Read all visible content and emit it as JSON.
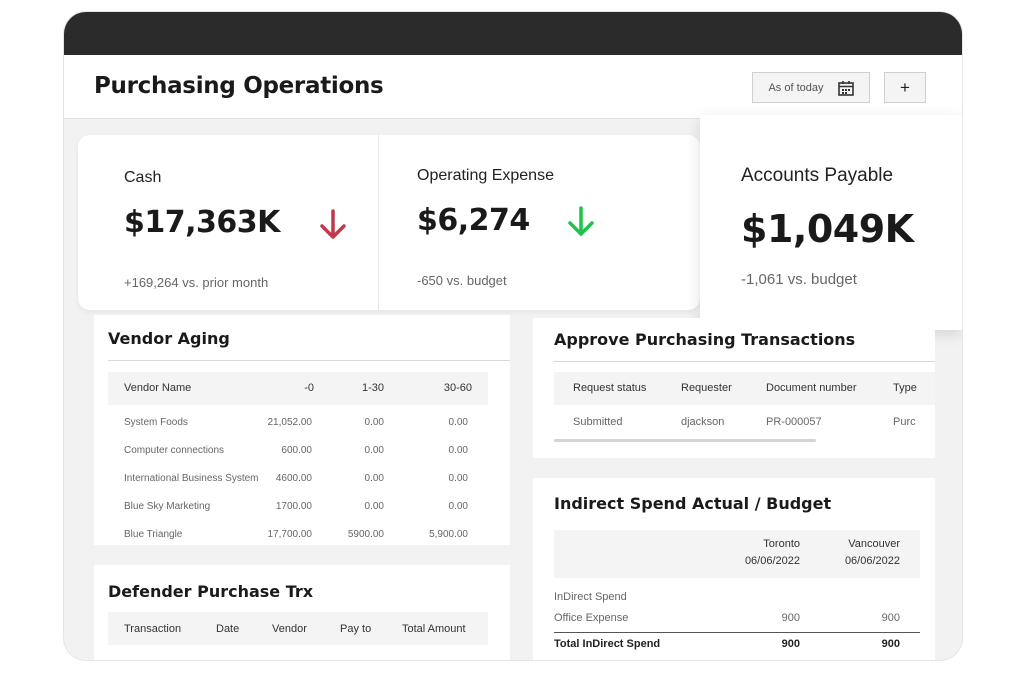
{
  "header": {
    "title": "Purchasing Operations",
    "date_button": "As of today",
    "add_button": "+"
  },
  "kpis": [
    {
      "label": "Cash",
      "value": "$17,363K",
      "note": "+169,264 vs. prior month"
    },
    {
      "label": "Operating Expense",
      "value": "$6,274",
      "note": "-650 vs. budget"
    },
    {
      "label": "Accounts Payable",
      "value": "$1,049K",
      "note": "-1,061 vs. budget"
    }
  ],
  "vendor_aging": {
    "title": "Vendor Aging",
    "columns": [
      "Vendor Name",
      "-0",
      "1-30",
      "30-60"
    ],
    "rows": [
      [
        "System Foods",
        "21,052.00",
        "0.00",
        "0.00"
      ],
      [
        "Computer connections",
        "600.00",
        "0.00",
        "0.00"
      ],
      [
        "International Business System",
        "4600.00",
        "0.00",
        "0.00"
      ],
      [
        "Blue Sky Marketing",
        "1700.00",
        "0.00",
        "0.00"
      ],
      [
        "Blue Triangle",
        "17,700.00",
        "5900.00",
        "5,900.00"
      ]
    ]
  },
  "defender": {
    "title": "Defender Purchase Trx",
    "columns": [
      "Transaction",
      "Date",
      "Vendor",
      "Pay to",
      "Total Amount"
    ]
  },
  "approve": {
    "title": "Approve Purchasing Transactions",
    "columns": [
      "Request status",
      "Requester",
      "Document number",
      "Type"
    ],
    "rows": [
      [
        "Submitted",
        "djackson",
        "PR-000057",
        "Purc"
      ]
    ]
  },
  "indirect": {
    "title": "Indirect Spend Actual / Budget",
    "columns": [
      {
        "city": "Toronto",
        "date": "06/06/2022"
      },
      {
        "city": "Vancouver",
        "date": "06/06/2022"
      }
    ],
    "rows": [
      [
        "InDirect Spend"
      ],
      [
        "Office Expense",
        "900",
        "900"
      ],
      [
        "Total InDirect Spend",
        "900",
        "900"
      ]
    ]
  }
}
